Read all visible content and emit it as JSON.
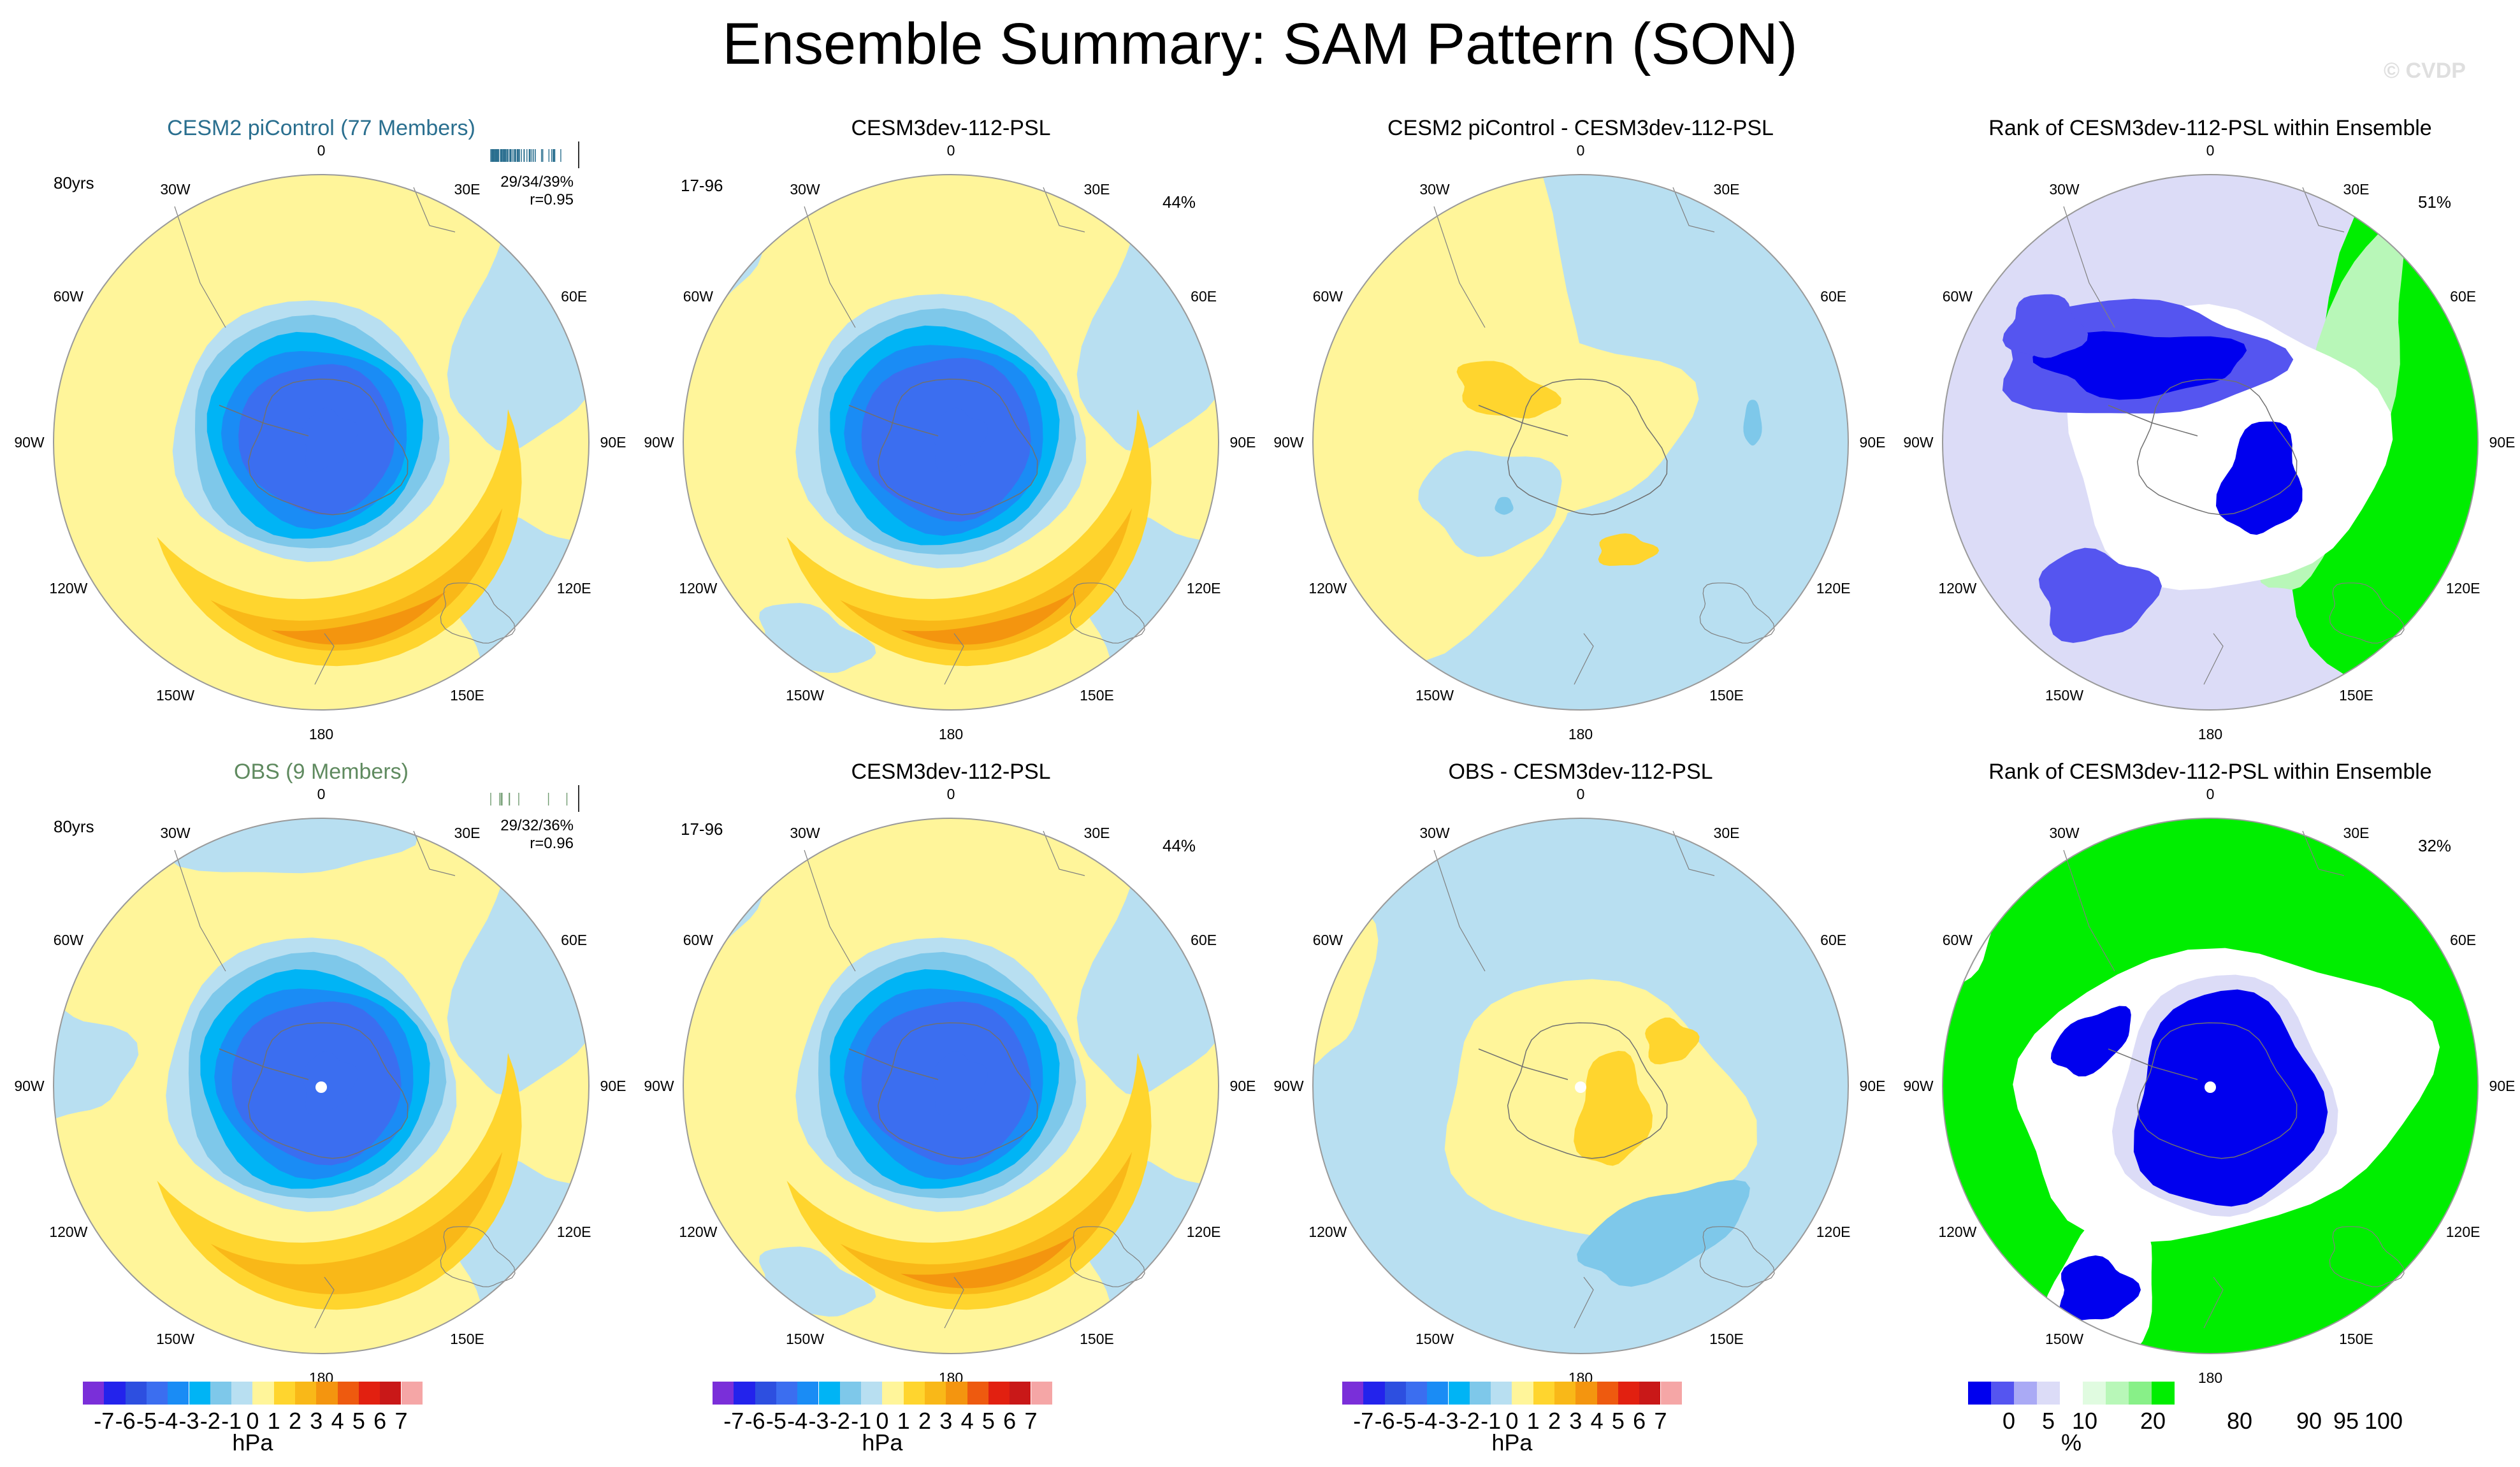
{
  "title": "Ensemble Summary: SAM Pattern (SON)",
  "copyright": "© CVDP",
  "lon_labels": [
    "0",
    "30E",
    "60E",
    "90E",
    "120E",
    "150E",
    "180",
    "150W",
    "120W",
    "90W",
    "60W",
    "30W"
  ],
  "colors": {
    "land": "#ffffff",
    "ocean_border": "#9a9a9a",
    "psl_levels": [
      "#7a2fd9",
      "#2323ec",
      "#2d4fe0",
      "#3b6ef0",
      "#1a8cf5",
      "#00b4f5",
      "#7ec8ea",
      "#b8dff1",
      "#fff59a",
      "#ffd52e",
      "#f9b818",
      "#f4950f",
      "#ee5a0f",
      "#e22010",
      "#c91818",
      "#f5a6a6"
    ],
    "rank_levels": [
      "#0000ee",
      "#5555f0",
      "#aaaaf5",
      "#dcdcf7",
      "#ffffff",
      "#e0fbe0",
      "#b8f7b8",
      "#88f088",
      "#00ee00"
    ]
  },
  "rows": [
    {
      "ensemble_title": "CESM2 piControl (77 Members)",
      "ensemble_years": "80yrs",
      "ensemble_stats": "29/34/39%",
      "ensemble_r": "r=0.95",
      "model_title": "CESM3dev-112-PSL",
      "model_years": "17-96",
      "model_pct": "44%",
      "diff_title": "CESM2 piControl - CESM3dev-112-PSL",
      "rank_title": "Rank of CESM3dev-112-PSL within Ensemble",
      "rank_pct": "51%"
    },
    {
      "ensemble_title": "OBS (9 Members)",
      "ensemble_years": "80yrs",
      "ensemble_stats": "29/32/36%",
      "ensemble_r": "r=0.96",
      "model_title": "CESM3dev-112-PSL",
      "model_years": "17-96",
      "model_pct": "44%",
      "diff_title": "OBS - CESM3dev-112-PSL",
      "rank_title": "Rank of CESM3dev-112-PSL within Ensemble",
      "rank_pct": "32%"
    }
  ],
  "colorbars": {
    "psl_labels": [
      "-7",
      "-6",
      "-5",
      "-4",
      "-3",
      "-2",
      "-1",
      "0",
      "1",
      "2",
      "3",
      "4",
      "5",
      "6",
      "7"
    ],
    "psl_unit": "hPa",
    "rank_labels": [
      "0",
      "5",
      "10",
      "20",
      "80",
      "90",
      "95",
      "100"
    ],
    "rank_unit": "%"
  },
  "chart_data": [
    {
      "type": "heatmap",
      "title": "CESM2 piControl (77 Members)",
      "projection": "south polar stereographic",
      "units": "hPa",
      "range": [
        -7,
        7
      ],
      "description_values": {
        "pole_anomaly_min": -5,
        "midlat_ring_max": 3
      }
    },
    {
      "type": "heatmap",
      "title": "CESM3dev-112-PSL",
      "units": "hPa",
      "range": [
        -7,
        7
      ],
      "description_values": {
        "pole_anomaly_min": -6,
        "midlat_ring_max": 3
      }
    },
    {
      "type": "heatmap",
      "title": "CESM2 piControl - CESM3dev-112-PSL",
      "units": "hPa",
      "range": [
        -7,
        7
      ]
    },
    {
      "type": "heatmap",
      "title": "Rank of CESM3dev-112-PSL within Ensemble",
      "units": "%",
      "range": [
        0,
        100
      ]
    },
    {
      "type": "heatmap",
      "title": "OBS (9 Members)",
      "units": "hPa",
      "range": [
        -7,
        7
      ]
    },
    {
      "type": "heatmap",
      "title": "CESM3dev-112-PSL",
      "units": "hPa",
      "range": [
        -7,
        7
      ]
    },
    {
      "type": "heatmap",
      "title": "OBS - CESM3dev-112-PSL",
      "units": "hPa",
      "range": [
        -7,
        7
      ]
    },
    {
      "type": "heatmap",
      "title": "Rank of CESM3dev-112-PSL within Ensemble",
      "units": "%",
      "range": [
        0,
        100
      ]
    }
  ]
}
